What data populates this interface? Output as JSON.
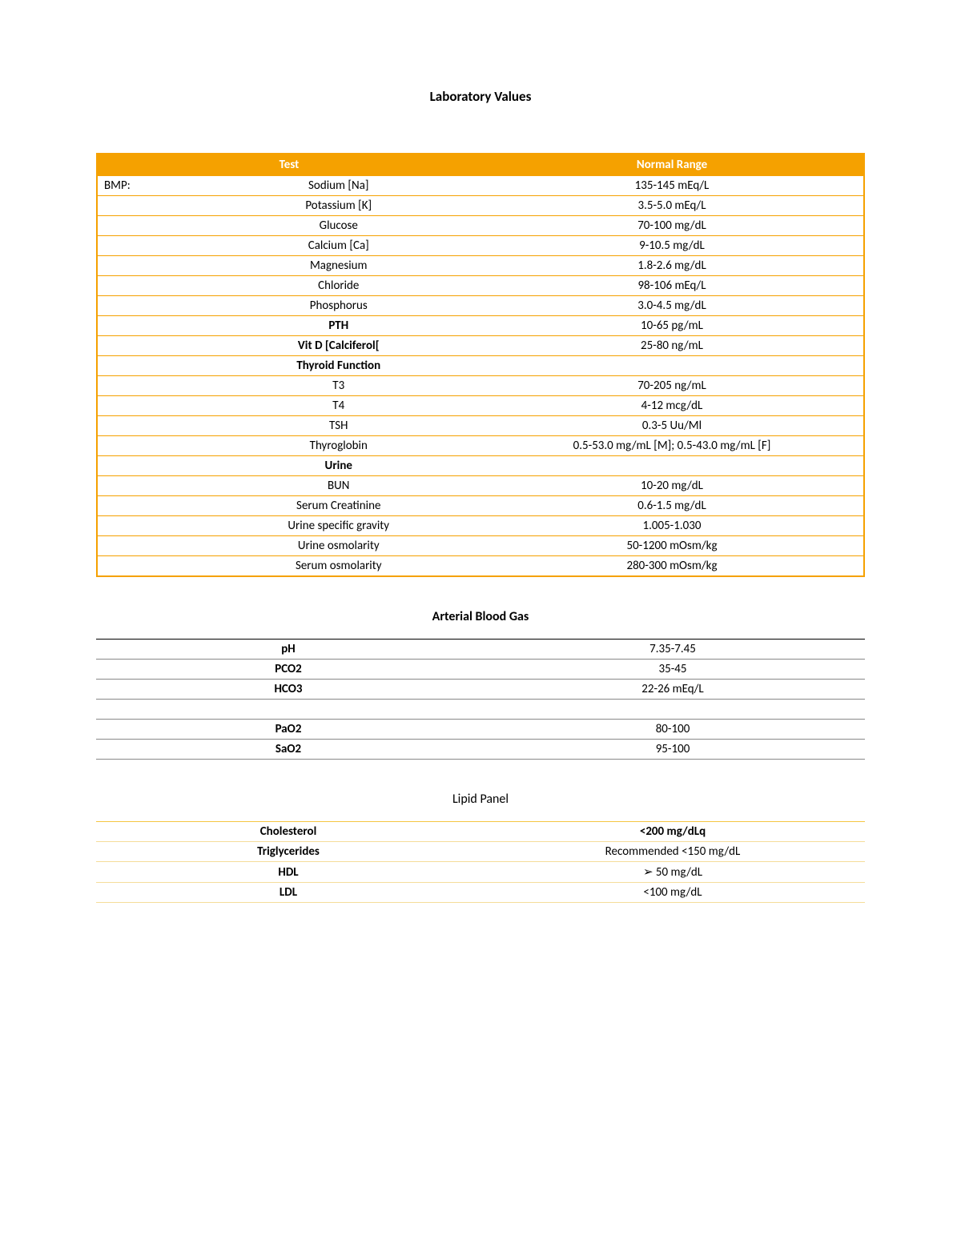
{
  "page_title": "Laboratory Values",
  "lab_headers": {
    "test": "Test",
    "range": "Normal Range"
  },
  "bmp_label": "BMP:",
  "lab_rows": [
    {
      "left": "BMP:",
      "test": "Sodium [Na]",
      "range": "135-145 mEq/L",
      "bold": false
    },
    {
      "left": "",
      "test": "Potassium [K]",
      "range": "3.5-5.0 mEq/L",
      "bold": false
    },
    {
      "left": "",
      "test": "Glucose",
      "range": "70-100 mg/dL",
      "bold": false
    },
    {
      "left": "",
      "test": "Calcium [Ca]",
      "range": "9-10.5 mg/dL",
      "bold": false
    },
    {
      "left": "",
      "test": "Magnesium",
      "range": "1.8-2.6 mg/dL",
      "bold": false
    },
    {
      "left": "",
      "test": "Chloride",
      "range": "98-106 mEq/L",
      "bold": false
    },
    {
      "left": "",
      "test": "Phosphorus",
      "range": "3.0-4.5 mg/dL",
      "bold": false
    },
    {
      "left": "",
      "test": "PTH",
      "range": "10-65 pg/mL",
      "bold": true
    },
    {
      "left": "",
      "test": "Vit D [Calciferol[",
      "range": "25-80 ng/mL",
      "bold": true
    },
    {
      "left": "",
      "test": "Thyroid Function",
      "range": "",
      "bold": true
    },
    {
      "left": "",
      "test": "T3",
      "range": "70-205 ng/mL",
      "bold": false
    },
    {
      "left": "",
      "test": "T4",
      "range": "4-12 mcg/dL",
      "bold": false
    },
    {
      "left": "",
      "test": "TSH",
      "range": "0.3-5 Uu/Ml",
      "bold": false
    },
    {
      "left": "",
      "test": "Thyroglobin",
      "range": "0.5-53.0 mg/mL [M]; 0.5-43.0 mg/mL [F]",
      "bold": false
    },
    {
      "left": "",
      "test": "Urine",
      "range": "",
      "bold": true
    },
    {
      "left": "",
      "test": "BUN",
      "range": "10-20 mg/dL",
      "bold": false
    },
    {
      "left": "",
      "test": "Serum Creatinine",
      "range": "0.6-1.5 mg/dL",
      "bold": false
    },
    {
      "left": "",
      "test": "Urine specific gravity",
      "range": "1.005-1.030",
      "bold": false
    },
    {
      "left": "",
      "test": "Urine osmolarity",
      "range": "50-1200 mOsm/kg",
      "bold": false
    },
    {
      "left": "",
      "test": "Serum osmolarity",
      "range": "280-300 mOsm/kg",
      "bold": false
    }
  ],
  "abg_title": "Arterial Blood Gas",
  "abg_rows": [
    {
      "test": "pH",
      "range": "7.35-7.45",
      "bold": true
    },
    {
      "test": "PCO2",
      "range": "35-45",
      "bold": true
    },
    {
      "test": "HCO3",
      "range": "22-26 mEq/L",
      "bold": true
    },
    {
      "spacer": true
    },
    {
      "test": "PaO2",
      "range": "80-100",
      "bold": true
    },
    {
      "test": "SaO2",
      "range": "95-100",
      "bold": true
    }
  ],
  "lipid_title": "Lipid Panel",
  "lipid_rows": [
    {
      "test": "Cholesterol",
      "range": "<200 mg/dLq",
      "bold_test": true,
      "bold_range": true
    },
    {
      "test": "Triglycerides",
      "range": "Recommended <150 mg/dL",
      "bold_test": true,
      "bold_range": false
    },
    {
      "test": "HDL",
      "range": "➢   50 mg/dL",
      "bold_test": true,
      "bold_range": false
    },
    {
      "test": "LDL",
      "range": "<100 mg/dL",
      "bold_test": true,
      "bold_range": false
    }
  ],
  "colors": {
    "header_bg": "#f5a100",
    "header_text": "#ffffff",
    "lab_border": "#f5a100",
    "abg_border": "#888888",
    "lipid_border_top": "#f5c642",
    "lipid_border": "#f5dd9a",
    "text": "#000000"
  }
}
